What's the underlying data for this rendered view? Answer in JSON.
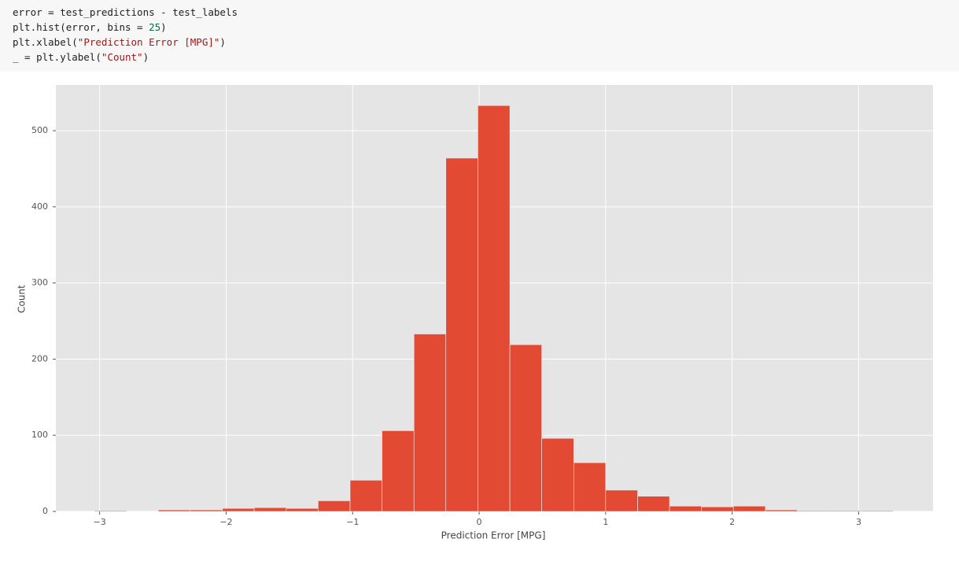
{
  "code": {
    "lines": [
      [
        "error = test_predictions - test_labels"
      ],
      [
        "plt.hist(error, bins = ",
        "25",
        ")"
      ],
      [
        "plt.xlabel(",
        "\"Prediction Error [MPG]\"",
        ")"
      ],
      [
        "_ = plt.ylabel(",
        "\"Count\"",
        ")"
      ]
    ]
  },
  "chart_data": {
    "type": "histogram",
    "xlabel": "Prediction Error [MPG]",
    "ylabel": "Count",
    "color": "#e24a33",
    "grid": true,
    "bins": [
      -3.04,
      -2.788,
      -2.535,
      -2.283,
      -2.03,
      -1.778,
      -1.525,
      -1.273,
      -1.02,
      -0.768,
      -0.515,
      -0.263,
      -0.01,
      0.243,
      0.495,
      0.748,
      1.0,
      1.253,
      1.505,
      1.758,
      2.01,
      2.263,
      2.515,
      2.768,
      3.02,
      3.273
    ],
    "values": [
      1,
      0,
      2,
      2,
      4,
      5,
      4,
      14,
      41,
      106,
      233,
      464,
      533,
      219,
      96,
      64,
      28,
      20,
      7,
      6,
      7,
      2,
      1,
      1,
      1
    ],
    "xlim": [
      -3.346,
      3.588
    ],
    "ylim": [
      0,
      560
    ],
    "xticks": [
      {
        "value": -3,
        "label": "−3"
      },
      {
        "value": -2,
        "label": "−2"
      },
      {
        "value": -1,
        "label": "−1"
      },
      0,
      1,
      2,
      3
    ],
    "yticks": [
      0,
      100,
      200,
      300,
      400,
      500
    ]
  }
}
